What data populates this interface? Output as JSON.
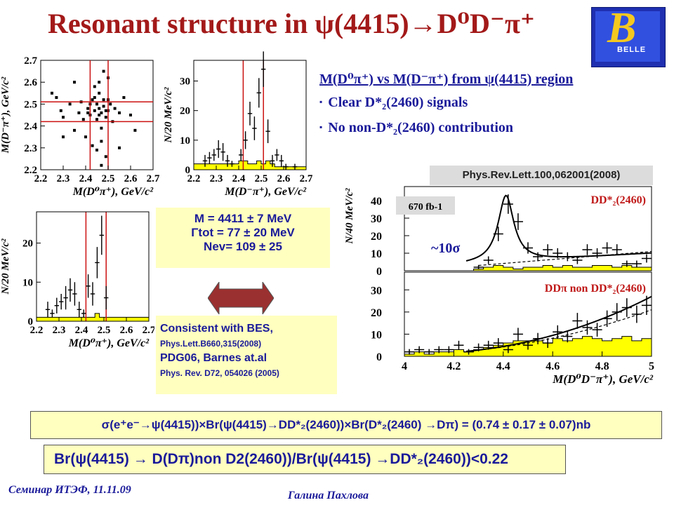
{
  "slide": {
    "title": "Resonant structure in ψ(4415)→D⁰D⁻π⁺",
    "logo_text": "BELLE",
    "logo_letter": "B",
    "subhead": "M(D⁰π⁺) vs M(D⁻π⁺) from ψ(4415) region",
    "bullet1": "Clear D*₂(2460) signals",
    "bullet2": "No non-D*₂(2460) contribution",
    "params": [
      "M = 4411 ± 7 MeV",
      "Γtot = 77 ± 20 MeV",
      "Nev= 109 ± 25"
    ],
    "consistent": [
      "Consistent with BES,",
      "Phys.Lett.B660,315(2008)",
      "PDG06, Barnes at.al",
      "Phys. Rev. D72, 054026 (2005)"
    ],
    "reference": "Phys.Rev.Lett.100,062001(2008)",
    "sigma_formula": "σ(e⁺e⁻→ψ(4415))×Br(ψ(4415)→DD*₂(2460))×Br(D*₂(2460) →Dπ) = (0.74 ± 0.17 ± 0.07)nb",
    "br_formula": "Br(ψ(4415) → D(Dπ)non D2(2460))/Br(ψ(4415) →DD*₂(2460))<0.22",
    "footer_left": "Семинар ИТЭФ, 11.11.09",
    "footer_center": "Галина Пахлова"
  },
  "colors": {
    "title": "#a31919",
    "text": "#1a1a9a",
    "hist_fill": "#ffff00",
    "guide_line": "#cc1111",
    "box_bg": "#ffffc0",
    "arrow": "#9b3030"
  },
  "chart_data": [
    {
      "type": "scatter",
      "xlabel": "M(D⁰π⁺), GeV/c²",
      "ylabel": "M(D⁻π⁺), GeV/c²",
      "xlim": [
        2.2,
        2.7
      ],
      "ylim": [
        2.2,
        2.7
      ],
      "xticks": [
        "2.2",
        "2.3",
        "2.4",
        "2.5",
        "2.6",
        "2.7"
      ],
      "yticks": [
        "2.2",
        "2.3",
        "2.4",
        "2.5",
        "2.6",
        "2.7"
      ],
      "vlines": [
        2.42,
        2.5
      ],
      "hlines": [
        2.42,
        2.51
      ],
      "points": [
        [
          2.25,
          2.55
        ],
        [
          2.27,
          2.53
        ],
        [
          2.29,
          2.47
        ],
        [
          2.3,
          2.44
        ],
        [
          2.33,
          2.5
        ],
        [
          2.35,
          2.38
        ],
        [
          2.37,
          2.46
        ],
        [
          2.38,
          2.51
        ],
        [
          2.39,
          2.43
        ],
        [
          2.4,
          2.35
        ],
        [
          2.41,
          2.48
        ],
        [
          2.42,
          2.45
        ],
        [
          2.43,
          2.52
        ],
        [
          2.44,
          2.47
        ],
        [
          2.45,
          2.5
        ],
        [
          2.45,
          2.43
        ],
        [
          2.46,
          2.55
        ],
        [
          2.46,
          2.48
        ],
        [
          2.47,
          2.46
        ],
        [
          2.47,
          2.39
        ],
        [
          2.48,
          2.52
        ],
        [
          2.48,
          2.49
        ],
        [
          2.49,
          2.44
        ],
        [
          2.5,
          2.47
        ],
        [
          2.51,
          2.5
        ],
        [
          2.52,
          2.42
        ],
        [
          2.53,
          2.48
        ],
        [
          2.55,
          2.46
        ],
        [
          2.57,
          2.53
        ],
        [
          2.6,
          2.45
        ],
        [
          2.62,
          2.38
        ],
        [
          2.45,
          2.29
        ],
        [
          2.47,
          2.33
        ],
        [
          2.49,
          2.26
        ],
        [
          2.43,
          2.31
        ],
        [
          2.46,
          2.6
        ],
        [
          2.48,
          2.65
        ],
        [
          2.44,
          2.58
        ],
        [
          2.5,
          2.62
        ],
        [
          2.47,
          2.22
        ],
        [
          2.3,
          2.35
        ],
        [
          2.55,
          2.3
        ],
        [
          2.35,
          2.6
        ],
        [
          2.42,
          2.5
        ],
        [
          2.44,
          2.53
        ],
        [
          2.46,
          2.45
        ],
        [
          2.41,
          2.46
        ],
        [
          2.5,
          2.52
        ],
        [
          2.49,
          2.47
        ]
      ]
    },
    {
      "type": "bar",
      "xlabel": "M(D⁻π⁺), GeV/c²",
      "ylabel": "N/20 MeV/c²",
      "xlim": [
        2.2,
        2.7
      ],
      "ylim": [
        0,
        37
      ],
      "xticks": [
        "2.2",
        "2.3",
        "2.4",
        "2.5",
        "2.6",
        "2.7"
      ],
      "yticks": [
        "0",
        "10",
        "20",
        "30"
      ],
      "vlines": [
        2.42,
        2.51
      ],
      "x": [
        2.21,
        2.23,
        2.25,
        2.27,
        2.29,
        2.31,
        2.33,
        2.35,
        2.37,
        2.39,
        2.41,
        2.43,
        2.45,
        2.47,
        2.49,
        2.51,
        2.53,
        2.55,
        2.57,
        2.59,
        2.61,
        2.63,
        2.65,
        2.67,
        2.69
      ],
      "values": [
        0,
        0,
        3,
        4,
        5,
        7,
        6,
        3,
        2,
        0,
        5,
        10,
        19,
        14,
        26,
        34,
        13,
        3,
        5,
        3,
        1,
        0,
        1,
        0,
        0
      ],
      "errors": [
        0,
        0,
        2,
        2,
        2,
        3,
        3,
        2,
        1,
        0,
        2,
        3,
        4,
        4,
        5,
        6,
        4,
        2,
        2,
        2,
        1,
        0,
        1,
        0,
        0
      ],
      "background": [
        2,
        2,
        2,
        2,
        2,
        2,
        2,
        2,
        2,
        2,
        3,
        3,
        2,
        2,
        3,
        2,
        3,
        2,
        1,
        1,
        1,
        1,
        1,
        1,
        1
      ]
    },
    {
      "type": "bar",
      "xlabel": "M(D⁰π⁺), GeV/c²",
      "ylabel": "N/20 MeV/c²",
      "xlim": [
        2.2,
        2.7
      ],
      "ylim": [
        0,
        28
      ],
      "xticks": [
        "2.2",
        "2.3",
        "2.4",
        "2.5",
        "2.6",
        "2.7"
      ],
      "yticks": [
        "0",
        "10",
        "20"
      ],
      "vlines": [
        2.42,
        2.51
      ],
      "x": [
        2.21,
        2.23,
        2.25,
        2.27,
        2.29,
        2.31,
        2.33,
        2.35,
        2.37,
        2.39,
        2.41,
        2.43,
        2.45,
        2.47,
        2.49,
        2.51,
        2.53,
        2.55,
        2.57,
        2.59,
        2.61,
        2.63,
        2.65,
        2.67,
        2.69
      ],
      "values": [
        0,
        0,
        3,
        2,
        4,
        5,
        6,
        8,
        7,
        3,
        2,
        9,
        7,
        15,
        22,
        6,
        0,
        0,
        0,
        0,
        0,
        0,
        0,
        0,
        0
      ],
      "errors": [
        0,
        0,
        2,
        1,
        2,
        2,
        3,
        3,
        3,
        2,
        1,
        3,
        3,
        4,
        5,
        3,
        0,
        0,
        0,
        0,
        0,
        0,
        0,
        0,
        0
      ],
      "background": [
        1,
        1,
        1,
        1,
        1,
        1,
        1,
        1,
        1,
        1,
        1,
        1,
        1,
        2,
        1,
        1,
        1,
        1,
        1,
        1,
        1,
        1,
        1,
        1,
        1
      ]
    },
    {
      "type": "line",
      "panel": "DD*₂(2460)",
      "annotation_lumi": "670 fb-1",
      "annotation_signif": "~10σ",
      "ylabel": "N/40 MeV/c²",
      "xlim": [
        4,
        5
      ],
      "ylim": [
        0,
        48
      ],
      "yticks": [
        "0",
        "10",
        "20",
        "30",
        "40"
      ],
      "x": [
        4.02,
        4.06,
        4.1,
        4.14,
        4.18,
        4.22,
        4.26,
        4.3,
        4.34,
        4.38,
        4.42,
        4.46,
        4.5,
        4.54,
        4.58,
        4.62,
        4.66,
        4.7,
        4.74,
        4.78,
        4.82,
        4.86,
        4.9,
        4.94,
        4.98
      ],
      "values": [
        0,
        0,
        0,
        0,
        0,
        0,
        0,
        2,
        6,
        21,
        38,
        28,
        13,
        8,
        12,
        10,
        8,
        6,
        12,
        10,
        13,
        12,
        4,
        4,
        7
      ],
      "background": [
        0,
        0,
        0,
        0,
        0,
        0,
        0,
        1,
        2,
        3,
        2,
        1,
        2,
        2,
        3,
        2,
        3,
        2,
        2,
        3,
        3,
        2,
        3,
        2,
        2
      ]
    },
    {
      "type": "line",
      "panel": "DDπ non DD*₂(2460)",
      "xlabel": "M(D⁰D⁻π⁺), GeV/c²",
      "xlim": [
        4,
        5
      ],
      "ylim": [
        0,
        38
      ],
      "xticks": [
        "4",
        "4.2",
        "4.4",
        "4.6",
        "4.8",
        "5"
      ],
      "yticks": [
        "0",
        "10",
        "20",
        "30"
      ],
      "x": [
        4.02,
        4.06,
        4.1,
        4.14,
        4.18,
        4.22,
        4.26,
        4.3,
        4.34,
        4.38,
        4.42,
        4.46,
        4.5,
        4.54,
        4.58,
        4.62,
        4.66,
        4.7,
        4.74,
        4.78,
        4.82,
        4.86,
        4.9,
        4.94,
        4.98
      ],
      "values": [
        2,
        3,
        2,
        3,
        3,
        5,
        2,
        4,
        5,
        6,
        3,
        10,
        5,
        8,
        6,
        11,
        9,
        16,
        13,
        12,
        17,
        20,
        22,
        19,
        23
      ],
      "background": [
        1,
        2,
        1,
        2,
        2,
        3,
        2,
        3,
        4,
        5,
        6,
        7,
        7,
        7,
        6,
        8,
        7,
        8,
        9,
        8,
        7,
        8,
        9,
        7,
        8
      ]
    }
  ]
}
